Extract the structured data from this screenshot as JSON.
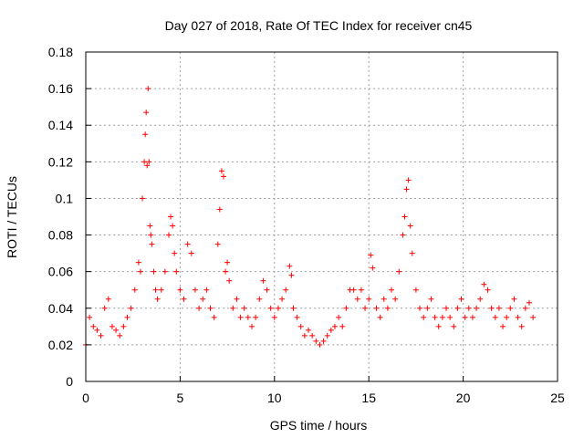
{
  "chart_data": {
    "type": "scatter",
    "title": "Day 027 of 2018, Rate Of TEC Index for receiver cn45",
    "xlabel": "GPS time / hours",
    "ylabel": "ROTI / TECUs",
    "xlim": [
      0,
      25
    ],
    "ylim": [
      0,
      0.18
    ],
    "x_ticks": [
      0,
      5,
      10,
      15,
      20,
      25
    ],
    "x_tick_labels": [
      "0",
      "5",
      "10",
      "15",
      "20",
      "25"
    ],
    "y_ticks": [
      0,
      0.02,
      0.04,
      0.06,
      0.08,
      0.1,
      0.12,
      0.14,
      0.16,
      0.18
    ],
    "y_tick_labels": [
      "0",
      "0.02",
      "0.04",
      "0.06",
      "0.08",
      "0.1",
      "0.12",
      "0.14",
      "0.16",
      "0.18"
    ],
    "grid": true,
    "marker": "+",
    "marker_color": "#ff0000",
    "series": [
      {
        "name": "ROTI",
        "x": [
          0.0,
          0.2,
          0.4,
          0.6,
          0.8,
          1.0,
          1.2,
          1.4,
          1.6,
          1.8,
          2.0,
          2.2,
          2.4,
          2.6,
          2.8,
          2.9,
          3.0,
          3.1,
          3.15,
          3.2,
          3.25,
          3.3,
          3.35,
          3.4,
          3.45,
          3.5,
          3.6,
          3.7,
          3.8,
          4.0,
          4.2,
          4.4,
          4.5,
          4.6,
          4.7,
          4.8,
          5.0,
          5.2,
          5.4,
          5.6,
          5.8,
          6.0,
          6.2,
          6.4,
          6.6,
          6.8,
          7.0,
          7.1,
          7.2,
          7.3,
          7.4,
          7.5,
          7.6,
          7.8,
          8.0,
          8.2,
          8.4,
          8.6,
          8.8,
          9.0,
          9.2,
          9.4,
          9.6,
          9.8,
          10.0,
          10.2,
          10.4,
          10.6,
          10.8,
          10.9,
          11.0,
          11.2,
          11.4,
          11.6,
          11.8,
          12.0,
          12.2,
          12.4,
          12.6,
          12.8,
          13.0,
          13.2,
          13.4,
          13.6,
          13.8,
          14.0,
          14.2,
          14.4,
          14.6,
          14.8,
          15.0,
          15.1,
          15.2,
          15.4,
          15.6,
          15.8,
          16.0,
          16.2,
          16.4,
          16.6,
          16.8,
          16.9,
          17.0,
          17.1,
          17.2,
          17.3,
          17.5,
          17.7,
          17.9,
          18.1,
          18.3,
          18.5,
          18.7,
          18.9,
          19.1,
          19.3,
          19.5,
          19.7,
          19.9,
          20.1,
          20.3,
          20.5,
          20.7,
          20.9,
          21.1,
          21.3,
          21.5,
          21.7,
          21.9,
          22.1,
          22.3,
          22.5,
          22.7,
          22.9,
          23.1,
          23.3,
          23.5,
          23.7
        ],
        "y": [
          0.02,
          0.035,
          0.03,
          0.028,
          0.025,
          0.04,
          0.045,
          0.03,
          0.028,
          0.025,
          0.03,
          0.035,
          0.04,
          0.05,
          0.065,
          0.06,
          0.1,
          0.12,
          0.135,
          0.147,
          0.118,
          0.16,
          0.12,
          0.085,
          0.08,
          0.075,
          0.06,
          0.05,
          0.045,
          0.05,
          0.06,
          0.08,
          0.09,
          0.085,
          0.07,
          0.06,
          0.05,
          0.045,
          0.075,
          0.07,
          0.05,
          0.04,
          0.045,
          0.05,
          0.04,
          0.035,
          0.075,
          0.094,
          0.115,
          0.112,
          0.06,
          0.065,
          0.055,
          0.04,
          0.045,
          0.035,
          0.04,
          0.035,
          0.03,
          0.035,
          0.045,
          0.055,
          0.05,
          0.04,
          0.035,
          0.04,
          0.045,
          0.05,
          0.063,
          0.058,
          0.04,
          0.035,
          0.03,
          0.025,
          0.028,
          0.025,
          0.022,
          0.02,
          0.022,
          0.025,
          0.028,
          0.03,
          0.035,
          0.03,
          0.04,
          0.05,
          0.05,
          0.045,
          0.05,
          0.04,
          0.045,
          0.069,
          0.062,
          0.04,
          0.035,
          0.045,
          0.04,
          0.05,
          0.045,
          0.06,
          0.08,
          0.09,
          0.105,
          0.11,
          0.085,
          0.07,
          0.05,
          0.04,
          0.035,
          0.04,
          0.045,
          0.035,
          0.03,
          0.035,
          0.04,
          0.035,
          0.03,
          0.04,
          0.045,
          0.035,
          0.04,
          0.035,
          0.04,
          0.045,
          0.053,
          0.05,
          0.04,
          0.035,
          0.04,
          0.03,
          0.035,
          0.04,
          0.045,
          0.035,
          0.03,
          0.04,
          0.043,
          0.035
        ]
      }
    ]
  }
}
